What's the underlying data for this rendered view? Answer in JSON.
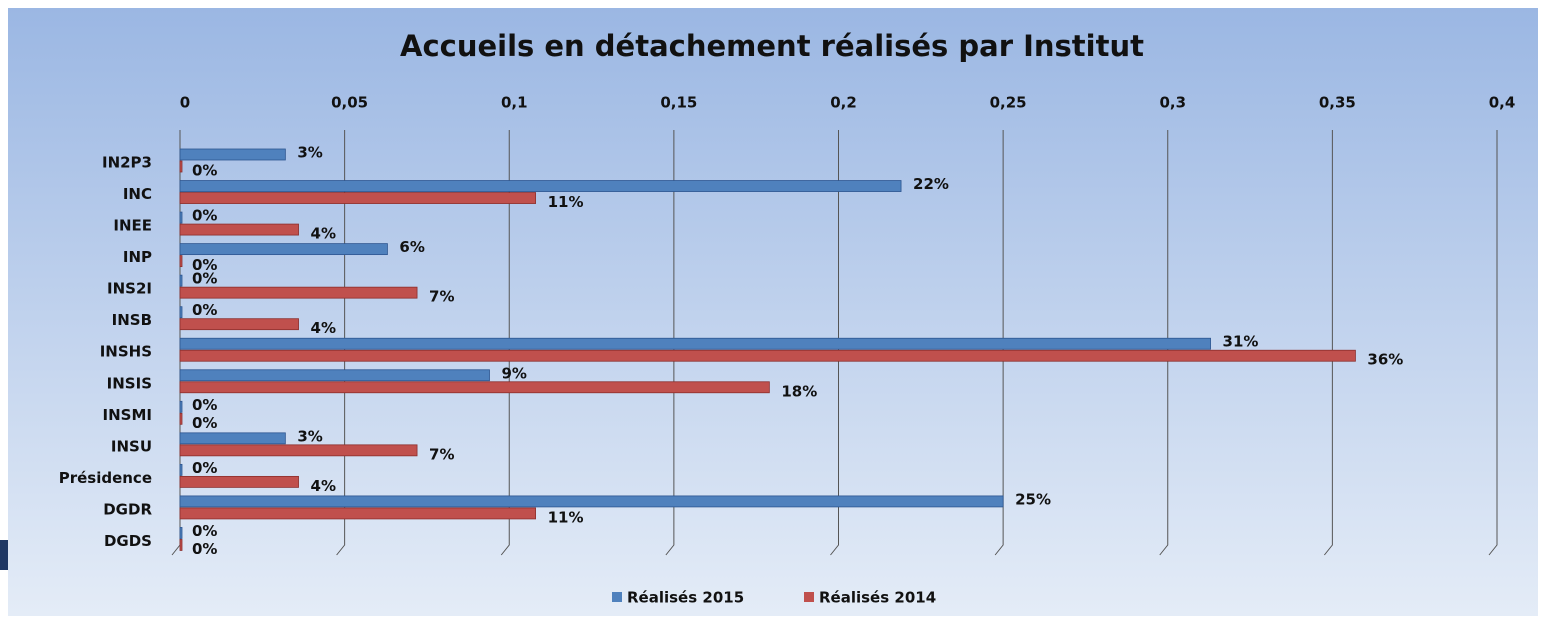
{
  "chart_data": {
    "type": "barh",
    "title": "Accueils en détachement réalisés par Institut",
    "categories": [
      "IN2P3",
      "INC",
      "INEE",
      "INP",
      "INS2I",
      "INSB",
      "INSHS",
      "INSIS",
      "INSMI",
      "INSU",
      "Présidence",
      "DGDR",
      "DGDS"
    ],
    "series": [
      {
        "name": "Réalisés 2015",
        "color": "#4f81bd",
        "values": [
          0.032,
          0.219,
          0,
          0.063,
          0,
          0,
          0.313,
          0.094,
          0,
          0.032,
          0,
          0.25,
          0
        ],
        "value_labels": [
          "3%",
          "22%",
          "0%",
          "6%",
          "0%",
          "0%",
          "31%",
          "9%",
          "0%",
          "3%",
          "0%",
          "25%",
          "0%"
        ]
      },
      {
        "name": "Réalisés 2014",
        "color": "#c0504d",
        "values": [
          0,
          0.108,
          0.036,
          0,
          0.072,
          0.036,
          0.357,
          0.179,
          0,
          0.072,
          0.036,
          0.108,
          0
        ],
        "value_labels": [
          "0%",
          "11%",
          "4%",
          "0%",
          "7%",
          "4%",
          "36%",
          "18%",
          "0%",
          "7%",
          "4%",
          "11%",
          "0%"
        ]
      }
    ],
    "xlim": [
      0,
      0.4
    ],
    "xticks": [
      0,
      {
        "value": 0.05,
        "label": "0,05"
      },
      {
        "value": 0.1,
        "label": "0,1"
      },
      {
        "value": 0.15,
        "label": "0,15"
      },
      {
        "value": 0.2,
        "label": "0,2"
      },
      {
        "value": 0.25,
        "label": "0,25"
      },
      {
        "value": 0.3,
        "label": "0,3"
      },
      {
        "value": 0.35,
        "label": "0,35"
      },
      {
        "value": 0.4,
        "label": "0,4"
      }
    ],
    "grid": true,
    "legend": "bottom"
  }
}
